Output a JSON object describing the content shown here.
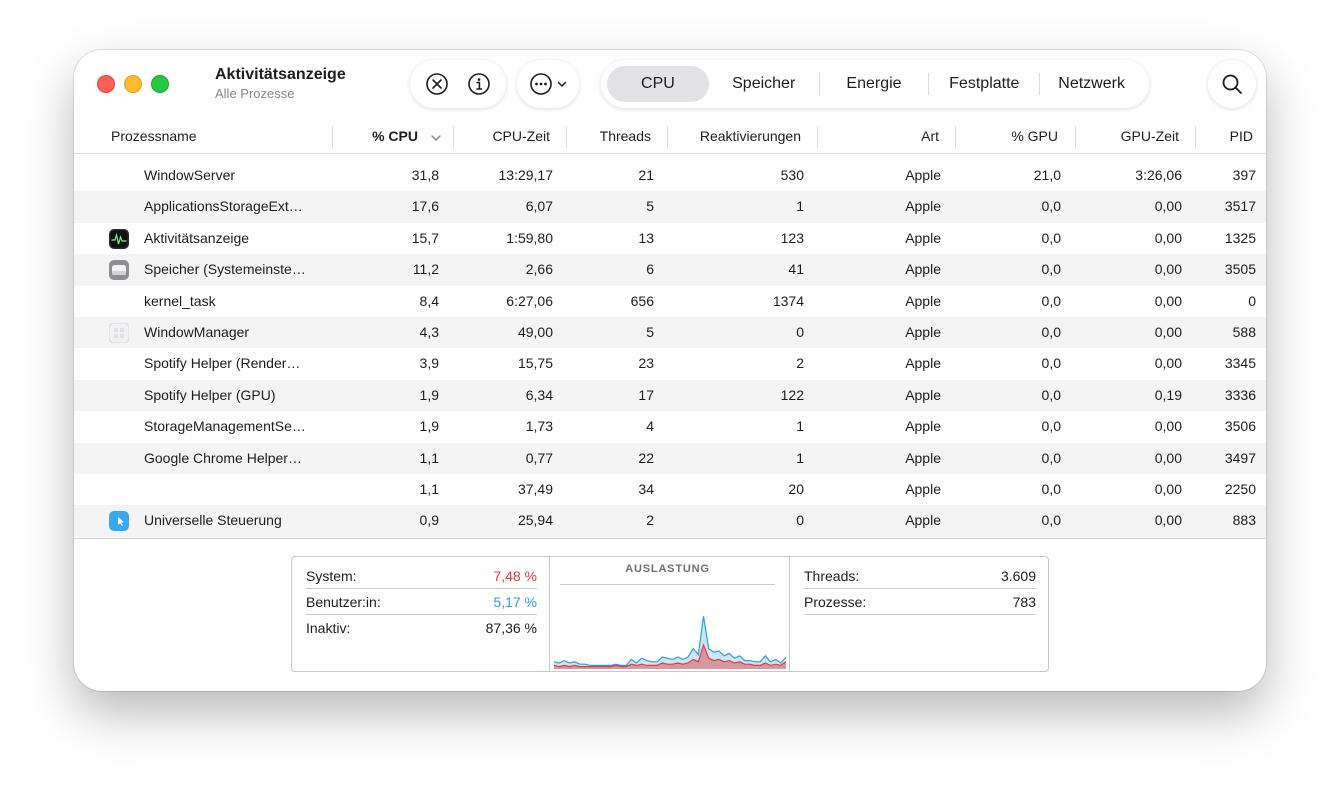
{
  "app": {
    "title": "Aktivitätsanzeige",
    "subtitle": "Alle Prozesse"
  },
  "toolbar": {
    "stop_icon": "xmark-circle-icon",
    "info_icon": "info-circle-icon",
    "more_icon": "ellipsis-circle-icon",
    "search_icon": "magnifying-glass-icon",
    "tabs": [
      {
        "label": "CPU",
        "active": true
      },
      {
        "label": "Speicher",
        "active": false
      },
      {
        "label": "Energie",
        "active": false
      },
      {
        "label": "Festplatte",
        "active": false
      },
      {
        "label": "Netzwerk",
        "active": false
      }
    ]
  },
  "table": {
    "columns": {
      "name": "Prozessname",
      "cpu": "% CPU",
      "cpu_time": "CPU-Zeit",
      "threads": "Threads",
      "wakeups": "Reaktivierungen",
      "kind": "Art",
      "gpu": "% GPU",
      "gpu_time": "GPU-Zeit",
      "pid": "PID"
    },
    "rows": [
      {
        "name": "WindowServer",
        "icon": "",
        "cpu": "31,8",
        "cpu_time": "13:29,17",
        "threads": "21",
        "wakeups": "530",
        "kind": "Apple",
        "gpu": "21,0",
        "gpu_time": "3:26,06",
        "pid": "397"
      },
      {
        "name": "ApplicationsStorageExt…",
        "icon": "",
        "cpu": "17,6",
        "cpu_time": "6,07",
        "threads": "5",
        "wakeups": "1",
        "kind": "Apple",
        "gpu": "0,0",
        "gpu_time": "0,00",
        "pid": "3517"
      },
      {
        "name": "Aktivitätsanzeige",
        "icon": "activity-monitor-icon",
        "cpu": "15,7",
        "cpu_time": "1:59,80",
        "threads": "13",
        "wakeups": "123",
        "kind": "Apple",
        "gpu": "0,0",
        "gpu_time": "0,00",
        "pid": "1325"
      },
      {
        "name": "Speicher (Systemeinste…",
        "icon": "storage-drive-icon",
        "cpu": "11,2",
        "cpu_time": "2,66",
        "threads": "6",
        "wakeups": "41",
        "kind": "Apple",
        "gpu": "0,0",
        "gpu_time": "0,00",
        "pid": "3505"
      },
      {
        "name": "kernel_task",
        "icon": "",
        "cpu": "8,4",
        "cpu_time": "6:27,06",
        "threads": "656",
        "wakeups": "1374",
        "kind": "Apple",
        "gpu": "0,0",
        "gpu_time": "0,00",
        "pid": "0"
      },
      {
        "name": "WindowManager",
        "icon": "window-manager-icon",
        "cpu": "4,3",
        "cpu_time": "49,00",
        "threads": "5",
        "wakeups": "0",
        "kind": "Apple",
        "gpu": "0,0",
        "gpu_time": "0,00",
        "pid": "588"
      },
      {
        "name": "Spotify Helper (Render…",
        "icon": "",
        "cpu": "3,9",
        "cpu_time": "15,75",
        "threads": "23",
        "wakeups": "2",
        "kind": "Apple",
        "gpu": "0,0",
        "gpu_time": "0,00",
        "pid": "3345"
      },
      {
        "name": "Spotify Helper (GPU)",
        "icon": "",
        "cpu": "1,9",
        "cpu_time": "6,34",
        "threads": "17",
        "wakeups": "122",
        "kind": "Apple",
        "gpu": "0,0",
        "gpu_time": "0,19",
        "pid": "3336"
      },
      {
        "name": "StorageManagementSe…",
        "icon": "",
        "cpu": "1,9",
        "cpu_time": "1,73",
        "threads": "4",
        "wakeups": "1",
        "kind": "Apple",
        "gpu": "0,0",
        "gpu_time": "0,00",
        "pid": "3506"
      },
      {
        "name": "Google Chrome Helper…",
        "icon": "",
        "cpu": "1,1",
        "cpu_time": "0,77",
        "threads": "22",
        "wakeups": "1",
        "kind": "Apple",
        "gpu": "0,0",
        "gpu_time": "0,00",
        "pid": "3497"
      },
      {
        "name": "",
        "icon": "",
        "cpu": "1,1",
        "cpu_time": "37,49",
        "threads": "34",
        "wakeups": "20",
        "kind": "Apple",
        "gpu": "0,0",
        "gpu_time": "0,00",
        "pid": "2250"
      },
      {
        "name": "Universelle Steuerung",
        "icon": "universal-control-icon",
        "cpu": "0,9",
        "cpu_time": "25,94",
        "threads": "2",
        "wakeups": "0",
        "kind": "Apple",
        "gpu": "0,0",
        "gpu_time": "0,00",
        "pid": "883"
      }
    ]
  },
  "stats": {
    "system_label": "System:",
    "system_value": "7,48 %",
    "user_label": "Benutzer:in:",
    "user_value": "5,17 %",
    "idle_label": "Inaktiv:",
    "idle_value": "87,36 %",
    "load_title": "AUSLASTUNG",
    "threads_label": "Threads:",
    "threads_value": "3.609",
    "processes_label": "Prozesse:",
    "processes_value": "783",
    "colors": {
      "system": "#e5383b",
      "user": "#2e9cdf"
    }
  },
  "load_graph": {
    "system": [
      3,
      2,
      3,
      2,
      3,
      2,
      2,
      2,
      2,
      2,
      2,
      2,
      3,
      2,
      2,
      4,
      3,
      4,
      3,
      3,
      3,
      5,
      4,
      4,
      5,
      4,
      5,
      8,
      6,
      20,
      9,
      7,
      8,
      6,
      7,
      5,
      6,
      4,
      4,
      3,
      3,
      5,
      3,
      4,
      3,
      6
    ],
    "total": [
      6,
      5,
      7,
      5,
      6,
      4,
      4,
      3,
      3,
      3,
      3,
      3,
      4,
      3,
      3,
      8,
      5,
      9,
      7,
      6,
      6,
      10,
      9,
      8,
      10,
      8,
      10,
      17,
      12,
      44,
      17,
      14,
      15,
      11,
      13,
      9,
      11,
      7,
      7,
      6,
      6,
      11,
      6,
      8,
      5,
      10
    ]
  }
}
